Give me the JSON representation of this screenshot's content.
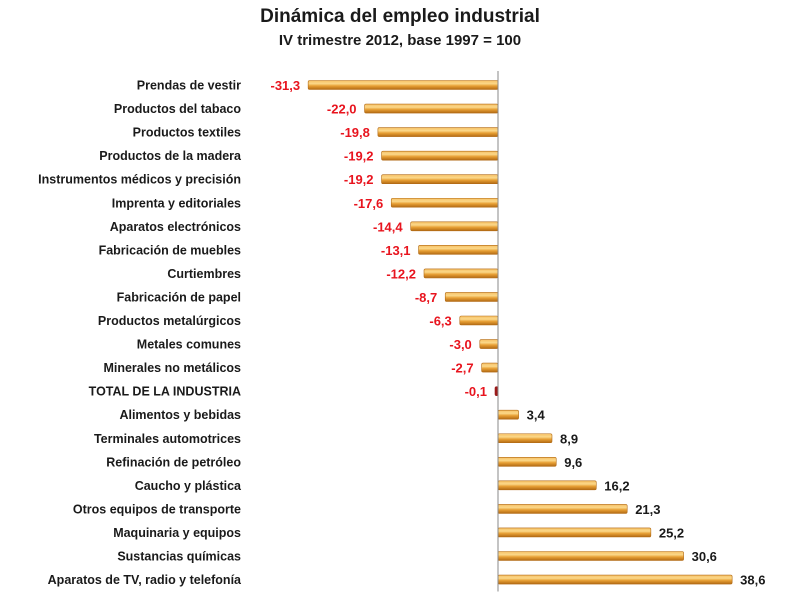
{
  "chart_data": {
    "type": "bar",
    "orientation": "horizontal",
    "title": "Dinámica del empleo industrial",
    "subtitle": "IV trimestre 2012, base 1997 = 100",
    "xlabel": "",
    "ylabel": "",
    "xlim": [
      -31.3,
      38.6
    ],
    "grid": false,
    "legend": "none",
    "categories": [
      "Prendas de vestir",
      "Productos del tabaco",
      "Productos textiles",
      "Productos de la madera",
      "Instrumentos médicos y precisión",
      "Imprenta y editoriales",
      "Aparatos electrónicos",
      "Fabricación de muebles",
      "Curtiembres",
      "Fabricación de papel",
      "Productos metalúrgicos",
      "Metales comunes",
      "Minerales no metálicos",
      "TOTAL DE LA INDUSTRIA",
      "Alimentos y bebidas",
      "Terminales automotrices",
      "Refinación de petróleo",
      "Caucho y plástica",
      "Otros equipos de transporte",
      "Maquinaria y equipos",
      "Sustancias químicas",
      "Aparatos de TV, radio y telefonía"
    ],
    "values": [
      -31.3,
      -22.0,
      -19.8,
      -19.2,
      -19.2,
      -17.6,
      -14.4,
      -13.1,
      -12.2,
      -8.7,
      -6.3,
      -3.0,
      -2.7,
      -0.1,
      3.4,
      8.9,
      9.6,
      16.2,
      21.3,
      25.2,
      30.6,
      38.6
    ],
    "value_labels": [
      "-31,3",
      "-22,0",
      "-19,8",
      "-19,2",
      "-19,2",
      "-17,6",
      "-14,4",
      "-13,1",
      "-12,2",
      "-8,7",
      "-6,3",
      "-3,0",
      "-2,7",
      "-0,1",
      "3,4",
      "8,9",
      "9,6",
      "16,2",
      "21,3",
      "25,2",
      "30,6",
      "38,6"
    ],
    "colors": {
      "bar": "#e8a035",
      "bar_highlight": "#fbd889",
      "bar_shadow": "#b26a14",
      "total_bar": "#9b1b1b",
      "negative_label": "#e8141e",
      "positive_label": "#1a1a1a",
      "axis": "#8a8a8a"
    }
  }
}
